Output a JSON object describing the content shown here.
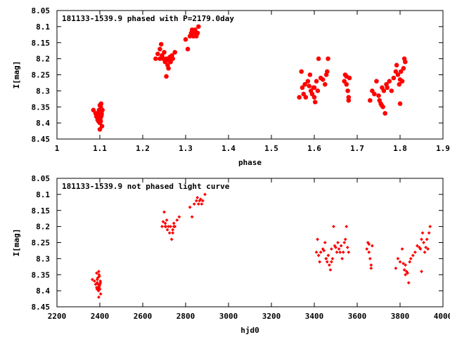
{
  "chart_data": [
    {
      "type": "scatter",
      "title": "181133-1539.9 phased with P=2179.0day",
      "xlabel": "phase",
      "ylabel": "I[mag]",
      "xlim": [
        1,
        1.9
      ],
      "ylim": [
        8.45,
        8.05
      ],
      "y_inverted": true,
      "x_ticks": [
        "1",
        "1.1",
        "1.2",
        "1.3",
        "1.4",
        "1.5",
        "1.6",
        "1.7",
        "1.8",
        "1.9"
      ],
      "y_ticks": [
        "8.05",
        "8.1",
        "8.15",
        "8.2",
        "8.25",
        "8.3",
        "8.35",
        "8.4",
        "8.45"
      ],
      "marker": "star",
      "color": "#ff0000",
      "series": [
        {
          "x": [
            1.085,
            1.09,
            1.092,
            1.095,
            1.097,
            1.098,
            1.1,
            1.1,
            1.101,
            1.102,
            1.103,
            1.104,
            1.105,
            1.106,
            1.095,
            1.1,
            1.103,
            1.098,
            1.102,
            1.1,
            1.104,
            1.097,
            1.1,
            1.23,
            1.235,
            1.24,
            1.243,
            1.245,
            1.248,
            1.25,
            1.252,
            1.255,
            1.258,
            1.26,
            1.263,
            1.265,
            1.268,
            1.27,
            1.275,
            1.255,
            1.26,
            1.24,
            1.3,
            1.305,
            1.31,
            1.313,
            1.315,
            1.318,
            1.32,
            1.322,
            1.325,
            1.328,
            1.33,
            1.565,
            1.57,
            1.572,
            1.575,
            1.578,
            1.58,
            1.585,
            1.59,
            1.592,
            1.595,
            1.598,
            1.6,
            1.602,
            1.605,
            1.608,
            1.61,
            1.615,
            1.62,
            1.625,
            1.628,
            1.63,
            1.632,
            1.6,
            1.588,
            1.67,
            1.672,
            1.675,
            1.678,
            1.68,
            1.682,
            1.675,
            1.68,
            1.73,
            1.735,
            1.74,
            1.745,
            1.75,
            1.752,
            1.755,
            1.758,
            1.76,
            1.762,
            1.765,
            1.768,
            1.77,
            1.775,
            1.78,
            1.785,
            1.79,
            1.792,
            1.795,
            1.798,
            1.8,
            1.802,
            1.805,
            1.808,
            1.81,
            1.812,
            1.757,
            1.8
          ],
          "y": [
            8.36,
            8.37,
            8.38,
            8.39,
            8.37,
            8.36,
            8.38,
            8.4,
            8.39,
            8.35,
            8.38,
            8.37,
            8.41,
            8.36,
            8.39,
            8.385,
            8.34,
            8.365,
            8.395,
            8.42,
            8.375,
            8.395,
            8.345,
            8.2,
            8.185,
            8.17,
            8.155,
            8.19,
            8.2,
            8.18,
            8.21,
            8.2,
            8.22,
            8.205,
            8.195,
            8.21,
            8.19,
            8.2,
            8.18,
            8.255,
            8.23,
            8.2,
            8.14,
            8.17,
            8.13,
            8.12,
            8.11,
            8.13,
            8.12,
            8.11,
            8.13,
            8.12,
            8.1,
            8.32,
            8.24,
            8.29,
            8.31,
            8.28,
            8.32,
            8.27,
            8.25,
            8.3,
            8.31,
            8.29,
            8.32,
            8.335,
            8.27,
            8.3,
            8.2,
            8.26,
            8.265,
            8.28,
            8.25,
            8.24,
            8.2,
            8.29,
            8.285,
            8.27,
            8.25,
            8.28,
            8.3,
            8.32,
            8.26,
            8.255,
            8.33,
            8.33,
            8.3,
            8.31,
            8.27,
            8.315,
            8.33,
            8.34,
            8.29,
            8.35,
            8.3,
            8.37,
            8.28,
            8.29,
            8.27,
            8.3,
            8.26,
            8.24,
            8.22,
            8.25,
            8.28,
            8.265,
            8.24,
            8.27,
            8.23,
            8.2,
            8.21,
            8.345,
            8.34
          ]
        }
      ]
    },
    {
      "type": "scatter",
      "title": "181133-1539.9 not phased light curve",
      "xlabel": "hjd0",
      "ylabel": "I[mag]",
      "xlim": [
        2200,
        4000
      ],
      "ylim": [
        8.45,
        8.05
      ],
      "y_inverted": true,
      "x_ticks": [
        "2200",
        "2400",
        "2600",
        "2800",
        "3000",
        "3200",
        "3400",
        "3600",
        "3800",
        "4000"
      ],
      "y_ticks": [
        "8.05",
        "8.1",
        "8.15",
        "8.2",
        "8.25",
        "8.3",
        "8.35",
        "8.4",
        "8.45"
      ],
      "marker": "diamond",
      "color": "#ff0000",
      "series": [
        {
          "x": [
            2365,
            2375,
            2380,
            2385,
            2388,
            2390,
            2392,
            2394,
            2396,
            2398,
            2400,
            2402,
            2404,
            2385,
            2392,
            2398,
            2395,
            2388,
            2400,
            2395,
            2403,
            2387,
            2396,
            2690,
            2695,
            2700,
            2705,
            2708,
            2712,
            2715,
            2720,
            2725,
            2730,
            2735,
            2740,
            2745,
            2750,
            2760,
            2770,
            2740,
            2745,
            2705,
            2820,
            2830,
            2840,
            2850,
            2855,
            2860,
            2865,
            2870,
            2875,
            2880,
            2890,
            3410,
            3415,
            3420,
            3425,
            3430,
            3440,
            3445,
            3450,
            3455,
            3460,
            3465,
            3470,
            3475,
            3480,
            3485,
            3490,
            3495,
            3500,
            3505,
            3510,
            3515,
            3520,
            3525,
            3530,
            3535,
            3540,
            3545,
            3550,
            3555,
            3560,
            3480,
            3455,
            3645,
            3650,
            3655,
            3660,
            3665,
            3670,
            3655,
            3665,
            3780,
            3790,
            3800,
            3810,
            3815,
            3820,
            3825,
            3830,
            3835,
            3840,
            3845,
            3850,
            3860,
            3870,
            3880,
            3890,
            3895,
            3900,
            3905,
            3910,
            3915,
            3920,
            3925,
            3930,
            3935,
            3940,
            3825,
            3900
          ],
          "y": [
            8.365,
            8.37,
            8.38,
            8.39,
            8.375,
            8.36,
            8.38,
            8.4,
            8.39,
            8.355,
            8.38,
            8.37,
            8.41,
            8.345,
            8.39,
            8.385,
            8.34,
            8.365,
            8.395,
            8.42,
            8.375,
            8.395,
            8.35,
            8.2,
            8.185,
            8.155,
            8.19,
            8.2,
            8.18,
            8.21,
            8.2,
            8.22,
            8.2,
            8.24,
            8.21,
            8.19,
            8.2,
            8.18,
            8.17,
            8.22,
            8.2,
            8.2,
            8.14,
            8.17,
            8.13,
            8.12,
            8.11,
            8.13,
            8.12,
            8.115,
            8.13,
            8.12,
            8.1,
            8.28,
            8.24,
            8.29,
            8.31,
            8.28,
            8.27,
            8.275,
            8.25,
            8.3,
            8.31,
            8.29,
            8.32,
            8.335,
            8.27,
            8.3,
            8.2,
            8.26,
            8.265,
            8.28,
            8.25,
            8.27,
            8.28,
            8.26,
            8.3,
            8.28,
            8.25,
            8.24,
            8.2,
            8.265,
            8.28,
            8.31,
            8.3,
            8.27,
            8.25,
            8.28,
            8.3,
            8.32,
            8.26,
            8.255,
            8.33,
            8.33,
            8.3,
            8.31,
            8.27,
            8.315,
            8.335,
            8.35,
            8.34,
            8.345,
            8.375,
            8.31,
            8.3,
            8.29,
            8.28,
            8.26,
            8.265,
            8.27,
            8.24,
            8.22,
            8.25,
            8.28,
            8.265,
            8.24,
            8.27,
            8.22,
            8.2,
            8.32,
            8.34
          ]
        }
      ]
    }
  ]
}
